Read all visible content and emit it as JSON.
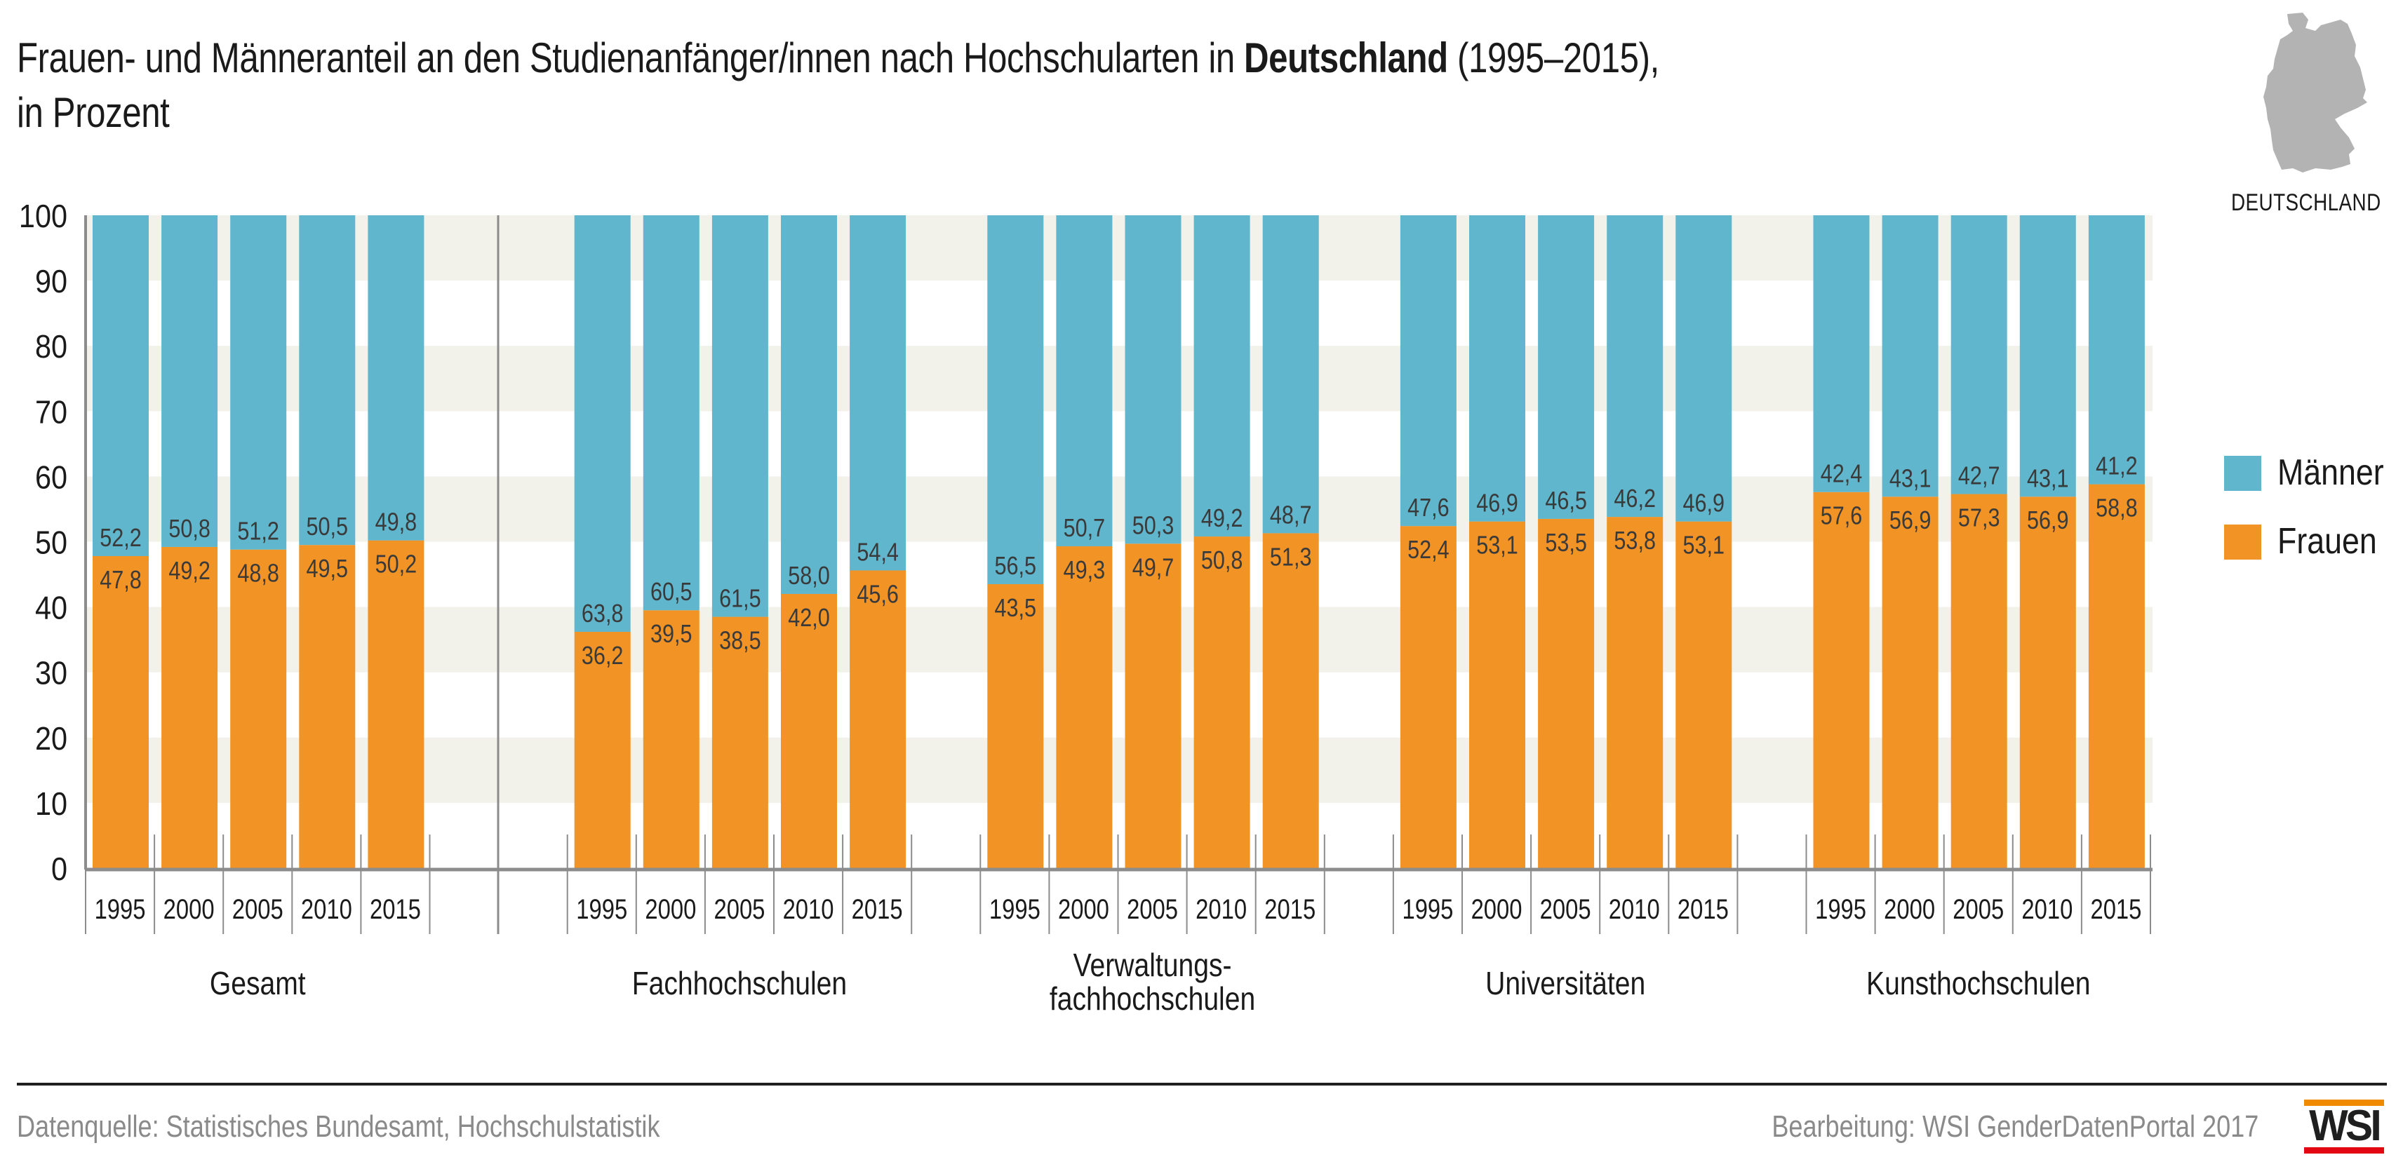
{
  "header": {
    "title_part1": "Frauen- und Männeranteil an den Studienanfänger/innen nach Hochschularten in ",
    "title_bold": "Deutschland",
    "title_part2": " (1995–2015),",
    "title_line2": "in Prozent"
  },
  "map": {
    "icon": "germany-map-icon",
    "label": "DEUTSCHLAND",
    "color": "#b3b3b3"
  },
  "legend": {
    "items": [
      {
        "label": "Männer",
        "color": "#5fb6cd"
      },
      {
        "label": "Frauen",
        "color": "#f29325"
      }
    ]
  },
  "footer": {
    "source": "Datenquelle: Statistisches Bundesamt, Hochschulstatistik",
    "credit": "Bearbeitung: WSI GenderDatenPortal 2017",
    "logo_text": "WSI",
    "logo_top_color": "#f08a00",
    "logo_bottom_color": "#e30613"
  },
  "chart_data": {
    "type": "bar",
    "stacked": true,
    "title": "Frauen- und Männeranteil an den Studienanfänger/innen nach Hochschularten in Deutschland (1995–2015), in Prozent",
    "xlabel": "",
    "ylabel": "",
    "ylim": [
      0,
      100
    ],
    "yticks": [
      0,
      10,
      20,
      30,
      40,
      50,
      60,
      70,
      80,
      90,
      100
    ],
    "grid": "alternating horizontal bands",
    "legend_position": "right",
    "colors": {
      "Frauen": "#f29325",
      "Männer": "#5fb6cd",
      "band": "#f2f1ea",
      "axis": "#8c8c8c",
      "label": "#3a3a3a"
    },
    "years": [
      "1995",
      "2000",
      "2005",
      "2010",
      "2015"
    ],
    "groups": [
      {
        "name": "Gesamt",
        "name_lines": [
          "Gesamt"
        ],
        "Frauen": [
          47.8,
          49.2,
          48.8,
          49.5,
          50.2
        ],
        "Männer": [
          52.2,
          50.8,
          51.2,
          50.5,
          49.8
        ],
        "Frauen_labels": [
          "47,8",
          "49,2",
          "48,8",
          "49,5",
          "50,2"
        ],
        "Männer_labels": [
          "52,2",
          "50,8",
          "51,2",
          "50,5",
          "49,8"
        ]
      },
      {
        "name": "Fachhochschulen",
        "name_lines": [
          "Fachhochschulen"
        ],
        "Frauen": [
          36.2,
          39.5,
          38.5,
          42.0,
          45.6
        ],
        "Männer": [
          63.8,
          60.5,
          61.5,
          58.0,
          54.4
        ],
        "Frauen_labels": [
          "36,2",
          "39,5",
          "38,5",
          "42,0",
          "45,6"
        ],
        "Männer_labels": [
          "63,8",
          "60,5",
          "61,5",
          "58,0",
          "54,4"
        ]
      },
      {
        "name": "Verwaltungsfachhochschulen",
        "name_lines": [
          "Verwaltungs-",
          "fachhochschulen"
        ],
        "Frauen": [
          43.5,
          49.3,
          49.7,
          50.8,
          51.3
        ],
        "Männer": [
          56.5,
          50.7,
          50.3,
          49.2,
          48.7
        ],
        "Frauen_labels": [
          "43,5",
          "49,3",
          "49,7",
          "50,8",
          "51,3"
        ],
        "Männer_labels": [
          "56,5",
          "50,7",
          "50,3",
          "49,2",
          "48,7"
        ]
      },
      {
        "name": "Universitäten",
        "name_lines": [
          "Universitäten"
        ],
        "Frauen": [
          52.4,
          53.1,
          53.5,
          53.8,
          53.1
        ],
        "Männer": [
          47.6,
          46.9,
          46.5,
          46.2,
          46.9
        ],
        "Frauen_labels": [
          "52,4",
          "53,1",
          "53,5",
          "53,8",
          "53,1"
        ],
        "Männer_labels": [
          "47,6",
          "46,9",
          "46,5",
          "46,2",
          "46,9"
        ]
      },
      {
        "name": "Kunsthochschulen",
        "name_lines": [
          "Kunsthochschulen"
        ],
        "Frauen": [
          57.6,
          56.9,
          57.3,
          56.9,
          58.8
        ],
        "Männer": [
          42.4,
          43.1,
          42.7,
          43.1,
          41.2
        ],
        "Frauen_labels": [
          "57,6",
          "56,9",
          "57,3",
          "56,9",
          "58,8"
        ],
        "Männer_labels": [
          "42,4",
          "43,1",
          "42,7",
          "43,1",
          "41,2"
        ]
      }
    ]
  }
}
